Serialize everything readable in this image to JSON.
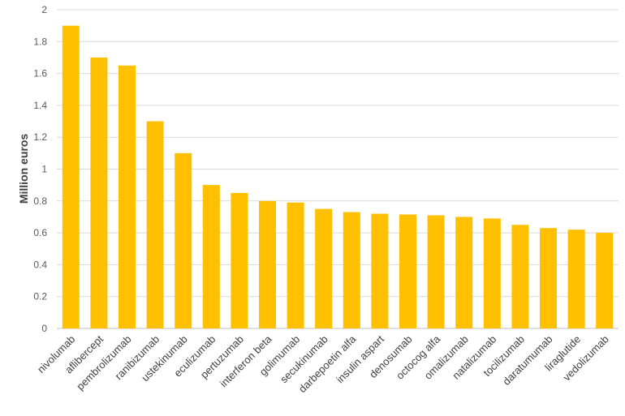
{
  "chart_data": {
    "type": "bar",
    "title": "",
    "xlabel": "",
    "ylabel": "Million euros",
    "ylim": [
      0,
      2
    ],
    "yticks": [
      "0",
      "0.2",
      "0.4",
      "0.6",
      "0.8",
      "1",
      "1.2",
      "1.4",
      "1.6",
      "1.8",
      "2"
    ],
    "grid": true,
    "legend": "none",
    "bar_color": "#FFC000",
    "categories": [
      "nivolumab",
      "aflibercept",
      "pembrolizumab",
      "ranibizumab",
      "ustekinumab",
      "eculizumab",
      "pertuzumab",
      "interferon beta",
      "golimumab",
      "secukinumab",
      "darbepoetin alfa",
      "insulin aspart",
      "denosumab",
      "octocog alfa",
      "omalizumab",
      "natalizumab",
      "tocilizumab",
      "daratumumab",
      "liraglutide",
      "vedolizumab"
    ],
    "values": [
      1.9,
      1.7,
      1.65,
      1.3,
      1.1,
      0.9,
      0.85,
      0.8,
      0.79,
      0.75,
      0.73,
      0.72,
      0.715,
      0.71,
      0.7,
      0.69,
      0.65,
      0.63,
      0.62,
      0.6
    ]
  }
}
